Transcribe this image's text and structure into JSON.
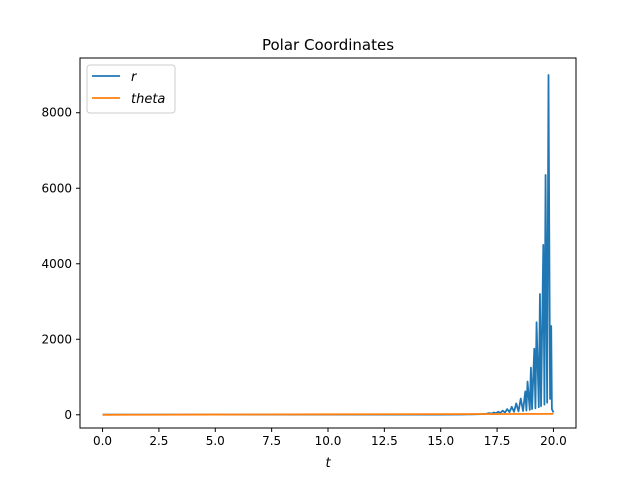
{
  "chart_data": {
    "type": "line",
    "title": "Polar Coordinates",
    "xlabel": "t",
    "ylabel": "",
    "xlim": [
      -1.0,
      21.0
    ],
    "ylim": [
      -350,
      9450
    ],
    "xticks": [
      0.0,
      2.5,
      5.0,
      7.5,
      10.0,
      12.5,
      15.0,
      17.5,
      20.0
    ],
    "xtick_labels": [
      "0.0",
      "2.5",
      "5.0",
      "7.5",
      "10.0",
      "12.5",
      "15.0",
      "17.5",
      "20.0"
    ],
    "yticks": [
      0,
      2000,
      4000,
      6000,
      8000
    ],
    "ytick_labels": [
      "0",
      "2000",
      "4000",
      "6000",
      "8000"
    ],
    "grid": false,
    "legend": "top-left",
    "series": [
      {
        "name": "r",
        "color": "#1f77b4",
        "x": [
          0.0,
          15.0,
          16.0,
          16.2,
          16.4,
          16.6,
          16.8,
          17.0,
          17.05,
          17.15,
          17.25,
          17.35,
          17.45,
          17.55,
          17.65,
          17.75,
          17.85,
          17.95,
          18.05,
          18.15,
          18.25,
          18.35,
          18.45,
          18.55,
          18.65,
          18.75,
          18.8,
          18.85,
          18.95,
          19.0,
          19.05,
          19.15,
          19.2,
          19.25,
          19.35,
          19.4,
          19.45,
          19.55,
          19.6,
          19.65,
          19.72,
          19.78,
          19.85,
          19.9,
          19.93,
          19.98,
          20.0
        ],
        "y": [
          5,
          5,
          8,
          10,
          12,
          15,
          18,
          25,
          30,
          45,
          30,
          60,
          40,
          80,
          50,
          110,
          60,
          150,
          70,
          210,
          80,
          300,
          90,
          430,
          100,
          620,
          110,
          880,
          130,
          1250,
          150,
          1750,
          170,
          2450,
          200,
          3200,
          230,
          4500,
          270,
          6350,
          320,
          9000,
          420,
          2350,
          150,
          90,
          60
        ]
      },
      {
        "name": "theta",
        "color": "#ff7f0e",
        "x": [
          0.0,
          5.0,
          10.0,
          15.0,
          20.0
        ],
        "y": [
          0,
          6,
          12,
          18,
          24
        ]
      }
    ]
  }
}
